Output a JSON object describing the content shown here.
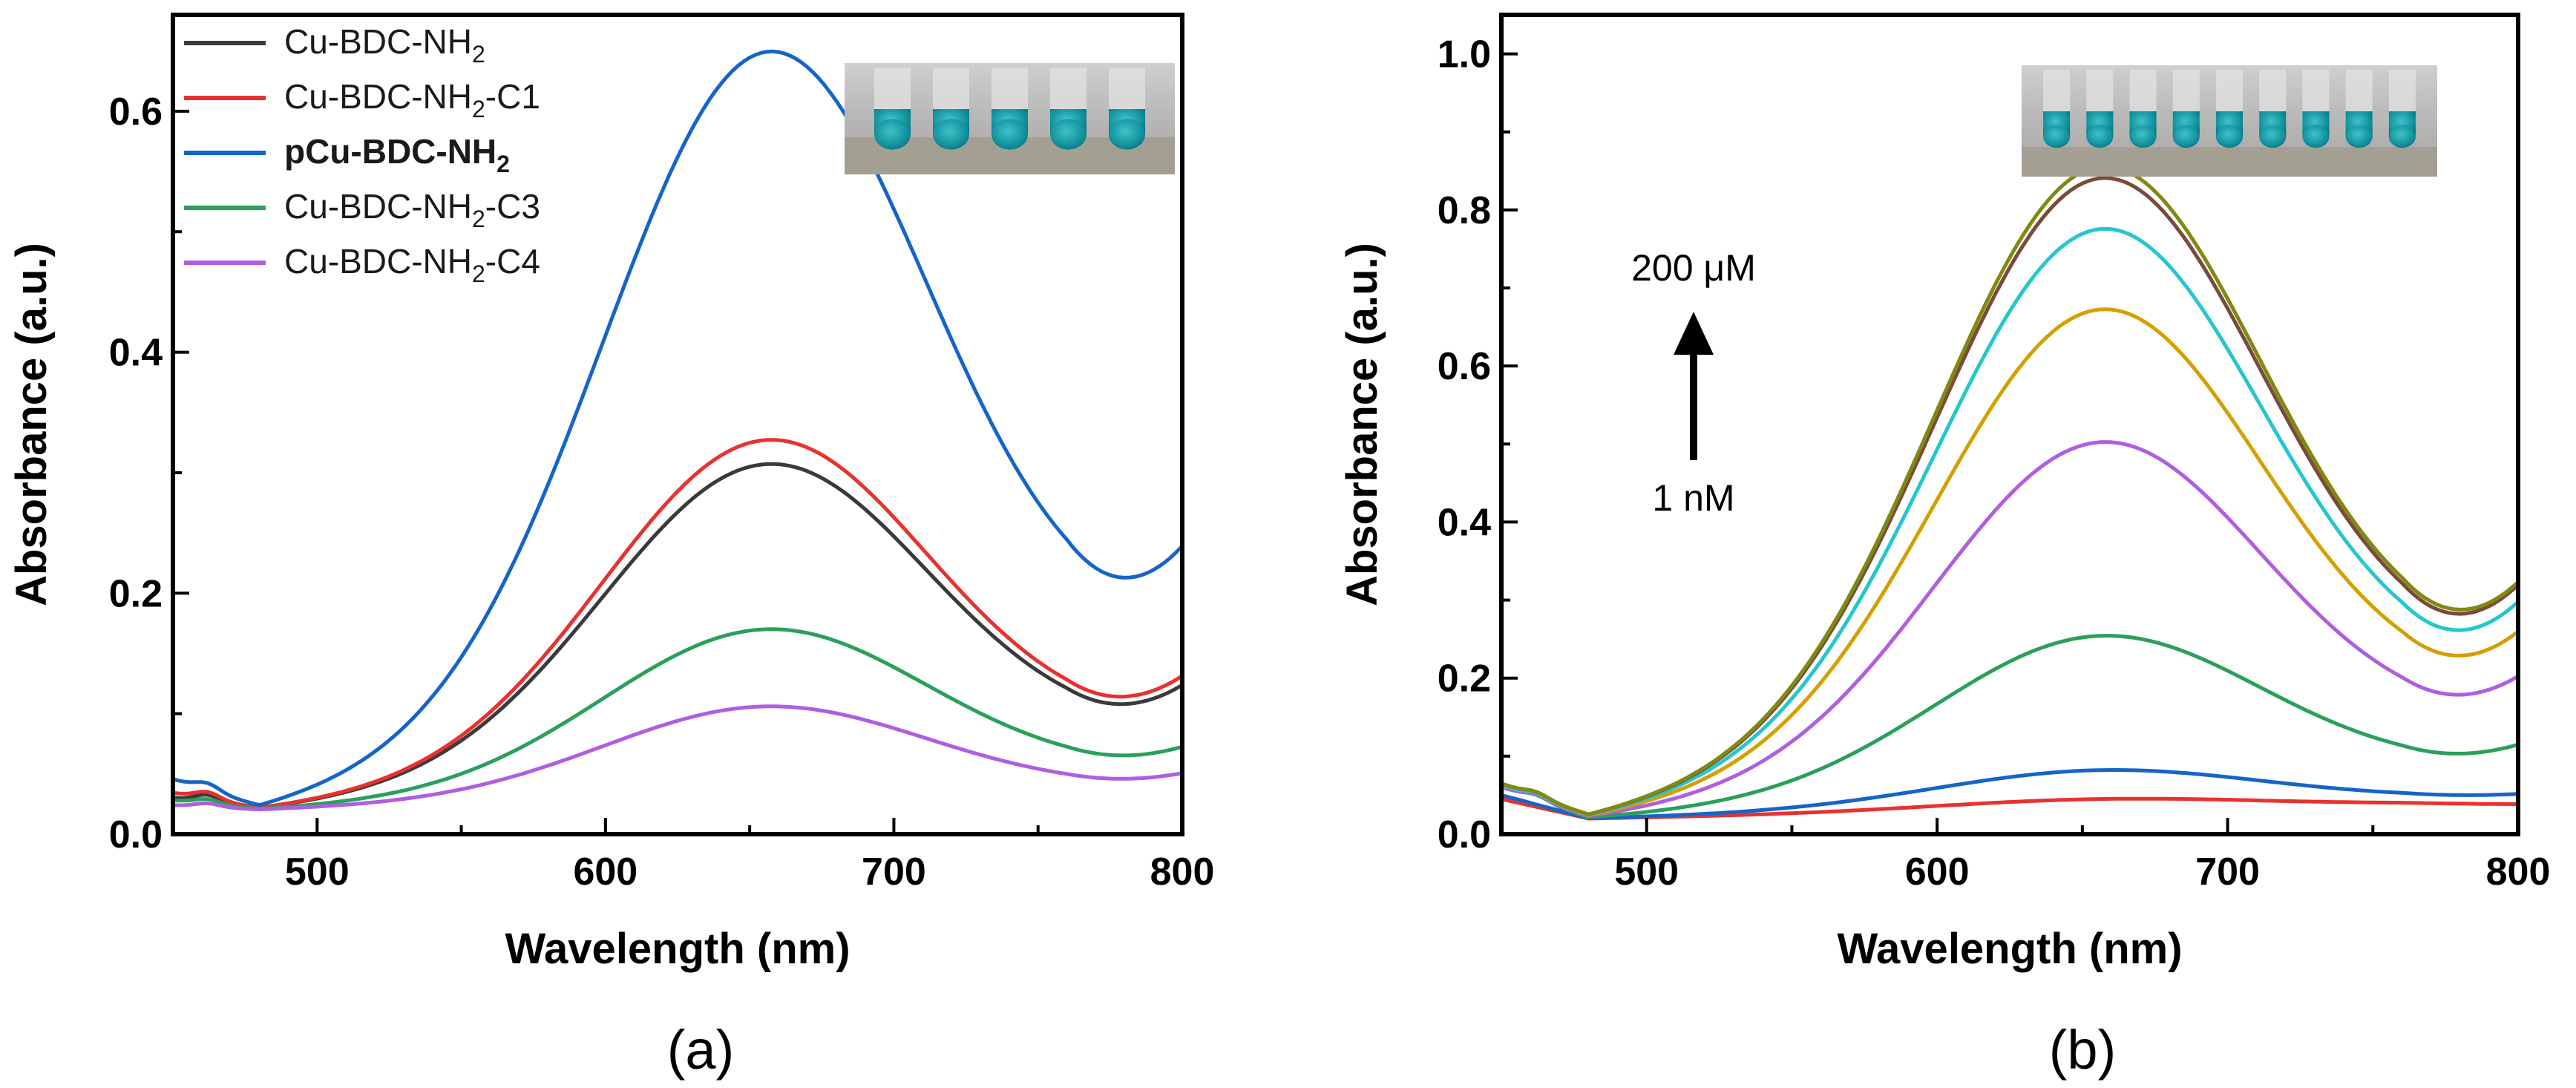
{
  "chart_data": [
    {
      "panel_label": "(a)",
      "type": "line",
      "xlabel": "Wavelength (nm)",
      "ylabel": "Absorbance (a.u.)",
      "xlim": [
        450,
        800
      ],
      "ylim": [
        0,
        0.68
      ],
      "xticks": [
        500,
        600,
        700,
        800
      ],
      "yticks": [
        0.0,
        0.2,
        0.4,
        0.6
      ],
      "xtick_labels": [
        "500",
        "600",
        "700",
        "800"
      ],
      "ytick_labels": [
        "0.0",
        "0.2",
        "0.4",
        "0.6"
      ],
      "grid": false,
      "legend_position": "top-left",
      "inset": "photo-of-tubes",
      "tube_count": 5,
      "series": [
        {
          "legend_main": "Cu-BDC-NH",
          "legend_sub": "2",
          "legend_tail": "",
          "legend_bold": false,
          "color": "#3a3a3a",
          "base": 0.03,
          "peak": 0.307,
          "min": 0.078,
          "end": 0.115,
          "bump": 0.006
        },
        {
          "legend_main": "Cu-BDC-NH",
          "legend_sub": "2",
          "legend_tail": "-C1",
          "legend_bold": false,
          "color": "#e8322f",
          "base": 0.034,
          "peak": 0.327,
          "min": 0.082,
          "end": 0.122,
          "bump": 0.006
        },
        {
          "legend_main": "pCu-BDC-NH",
          "legend_sub": "2",
          "legend_tail": "",
          "legend_bold": true,
          "color": "#1565c8",
          "base": 0.045,
          "peak": 0.649,
          "min": 0.15,
          "end": 0.22,
          "bump": 0.006
        },
        {
          "legend_main": "Cu-BDC-NH",
          "legend_sub": "2",
          "legend_tail": "-C3",
          "legend_bold": false,
          "color": "#2aa05a",
          "base": 0.028,
          "peak": 0.17,
          "min": 0.05,
          "end": 0.068,
          "bump": 0.004
        },
        {
          "legend_main": "Cu-BDC-NH",
          "legend_sub": "2",
          "legend_tail": "-C4",
          "legend_bold": false,
          "color": "#b05ee0",
          "base": 0.024,
          "peak": 0.106,
          "min": 0.037,
          "end": 0.048,
          "bump": 0.003
        }
      ]
    },
    {
      "panel_label": "(b)",
      "type": "line",
      "xlabel": "Wavelength (nm)",
      "ylabel": "Absorbance (a.u.)",
      "xlim": [
        450,
        800
      ],
      "ylim": [
        0,
        1.05
      ],
      "xticks": [
        500,
        600,
        700,
        800
      ],
      "yticks": [
        0.0,
        0.2,
        0.4,
        0.6,
        0.8,
        1.0
      ],
      "xtick_labels": [
        "500",
        "600",
        "700",
        "800"
      ],
      "ytick_labels": [
        "0.0",
        "0.2",
        "0.4",
        "0.6",
        "0.8",
        "1.0"
      ],
      "grid": false,
      "annotation_top": "200 μM",
      "annotation_bottom": "1 nM",
      "inset": "photo-of-tubes",
      "tube_count": 9,
      "series": [
        {
          "color": "#e8322f",
          "base": 0.045,
          "peak": 0.045,
          "min": 0.038,
          "end": 0.038,
          "bump": 0.0
        },
        {
          "color": "#1565c8",
          "base": 0.05,
          "peak": 0.082,
          "min": 0.045,
          "end": 0.05,
          "bump": 0.0
        },
        {
          "color": "#2aa05a",
          "base": 0.06,
          "peak": 0.254,
          "min": 0.08,
          "end": 0.108,
          "bump": 0.006
        },
        {
          "color": "#b05ee0",
          "base": 0.06,
          "peak": 0.502,
          "min": 0.13,
          "end": 0.188,
          "bump": 0.006
        },
        {
          "color": "#d4a000",
          "base": 0.062,
          "peak": 0.672,
          "min": 0.163,
          "end": 0.24,
          "bump": 0.006
        },
        {
          "color": "#26c6d0",
          "base": 0.062,
          "peak": 0.775,
          "min": 0.185,
          "end": 0.275,
          "bump": 0.006
        },
        {
          "color": "#7a4a3a",
          "base": 0.064,
          "peak": 0.84,
          "min": 0.2,
          "end": 0.295,
          "bump": 0.006
        },
        {
          "color": "#7f8a10",
          "base": 0.064,
          "peak": 0.855,
          "min": 0.205,
          "end": 0.298,
          "bump": 0.006
        }
      ]
    }
  ]
}
